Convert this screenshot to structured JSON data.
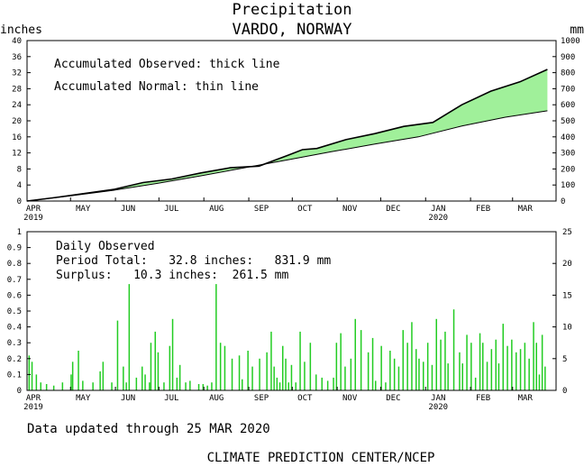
{
  "chart_data": [
    {
      "type": "area",
      "title": "Precipitation",
      "subtitle": "VARDO, NORWAY",
      "ylabel_left": "inches",
      "ylabel_right": "mm",
      "ylim_left": [
        0,
        40
      ],
      "ylim_right": [
        0,
        1000
      ],
      "yticks_left": [
        "0",
        "4",
        "8",
        "12",
        "16",
        "20",
        "24",
        "28",
        "32",
        "36",
        "40"
      ],
      "yticks_right": [
        "0",
        "100",
        "200",
        "300",
        "400",
        "500",
        "600",
        "700",
        "800",
        "900",
        "1000"
      ],
      "x_month_labels": [
        "APR",
        "MAY",
        "JUN",
        "JUL",
        "AUG",
        "SEP",
        "OCT",
        "NOV",
        "DEC",
        "JAN",
        "FEB",
        "MAR"
      ],
      "x_year_labels": [
        "2019",
        "2020"
      ],
      "annotations": [
        "Accumulated Observed: thick line",
        "Accumulated Normal: thin line"
      ],
      "fill_color": "#a0f09a",
      "x_unit": "day index from 1 Apr 2019",
      "series": [
        {
          "name": "Accumulated Observed",
          "x": [
            0,
            20,
            40,
            60,
            80,
            100,
            120,
            140,
            160,
            180,
            190,
            200,
            220,
            240,
            260,
            280,
            300,
            320,
            340,
            359
          ],
          "values": [
            0,
            0.9,
            1.9,
            2.9,
            4.6,
            5.5,
            7.0,
            8.3,
            8.7,
            11.4,
            12.8,
            13.1,
            15.3,
            16.8,
            18.6,
            19.6,
            24.0,
            27.4,
            29.7,
            32.8
          ]
        },
        {
          "name": "Accumulated Normal",
          "x": [
            0,
            30,
            60,
            90,
            120,
            150,
            180,
            210,
            240,
            270,
            300,
            330,
            359
          ],
          "values": [
            0,
            1.3,
            2.7,
            4.4,
            6.3,
            8.3,
            10.3,
            12.3,
            14.2,
            16.0,
            18.7,
            20.9,
            22.5
          ]
        }
      ]
    },
    {
      "type": "bar",
      "ylabel_left": "",
      "ylim_left": [
        0,
        1
      ],
      "ylim_right": [
        0,
        25
      ],
      "yticks_left": [
        "0",
        "0.1",
        "0.2",
        "0.3",
        "0.4",
        "0.5",
        "0.6",
        "0.7",
        "0.8",
        "0.9",
        "1"
      ],
      "yticks_right": [
        "0",
        "5",
        "10",
        "15",
        "20",
        "25"
      ],
      "x_month_labels": [
        "APR",
        "MAY",
        "JUN",
        "JUL",
        "AUG",
        "SEP",
        "OCT",
        "NOV",
        "DEC",
        "JAN",
        "FEB",
        "MAR"
      ],
      "x_year_labels": [
        "2019",
        "2020"
      ],
      "annotations": [
        "Daily Observed",
        "Period Total:   32.8 inches:   831.9 mm",
        "Surplus:   10.3 inches:  261.5 mm"
      ],
      "bar_color": "#22cc22",
      "series": [
        {
          "name": "Daily Observed",
          "x": [
            1,
            3,
            6,
            9,
            13,
            18,
            24,
            30,
            31,
            35,
            38,
            45,
            50,
            52,
            58,
            62,
            66,
            68,
            70,
            75,
            79,
            81,
            84,
            85,
            88,
            90,
            94,
            98,
            100,
            103,
            105,
            109,
            112,
            118,
            121,
            124,
            127,
            130,
            133,
            136,
            141,
            146,
            148,
            152,
            155,
            160,
            165,
            168,
            170,
            172,
            174,
            176,
            178,
            180,
            182,
            185,
            188,
            191,
            195,
            199,
            203,
            207,
            211,
            213,
            216,
            219,
            223,
            226,
            230,
            235,
            238,
            240,
            244,
            247,
            250,
            253,
            256,
            259,
            262,
            265,
            268,
            270,
            273,
            276,
            279,
            282,
            285,
            288,
            290,
            294,
            298,
            300,
            303,
            306,
            309,
            312,
            314,
            317,
            320,
            323,
            325,
            328,
            331,
            334,
            337,
            340,
            343,
            346,
            349,
            351,
            353,
            355,
            357
          ],
          "values": [
            0.22,
            0.18,
            0.1,
            0.05,
            0.04,
            0.03,
            0.05,
            0.1,
            0.18,
            0.25,
            0.06,
            0.05,
            0.12,
            0.18,
            0.05,
            0.44,
            0.15,
            0.05,
            0.67,
            0.08,
            0.15,
            0.1,
            0.05,
            0.3,
            0.37,
            0.24,
            0.05,
            0.28,
            0.45,
            0.08,
            0.16,
            0.05,
            0.06,
            0.04,
            0.04,
            0.03,
            0.05,
            0.67,
            0.3,
            0.28,
            0.2,
            0.22,
            0.07,
            0.25,
            0.15,
            0.2,
            0.24,
            0.37,
            0.15,
            0.08,
            0.05,
            0.28,
            0.2,
            0.05,
            0.16,
            0.05,
            0.37,
            0.18,
            0.3,
            0.1,
            0.08,
            0.06,
            0.08,
            0.3,
            0.36,
            0.15,
            0.2,
            0.45,
            0.38,
            0.24,
            0.33,
            0.06,
            0.28,
            0.05,
            0.25,
            0.2,
            0.15,
            0.38,
            0.3,
            0.43,
            0.26,
            0.2,
            0.18,
            0.3,
            0.16,
            0.45,
            0.32,
            0.37,
            0.17,
            0.51,
            0.24,
            0.17,
            0.35,
            0.3,
            0.08,
            0.36,
            0.3,
            0.18,
            0.26,
            0.32,
            0.17,
            0.42,
            0.28,
            0.32,
            0.24,
            0.26,
            0.3,
            0.2,
            0.43,
            0.3,
            0.1,
            0.35,
            0.15
          ]
        }
      ]
    }
  ],
  "footer": {
    "updated": "Data updated through 25 MAR 2020",
    "credit": "CLIMATE PREDICTION CENTER/NCEP"
  }
}
